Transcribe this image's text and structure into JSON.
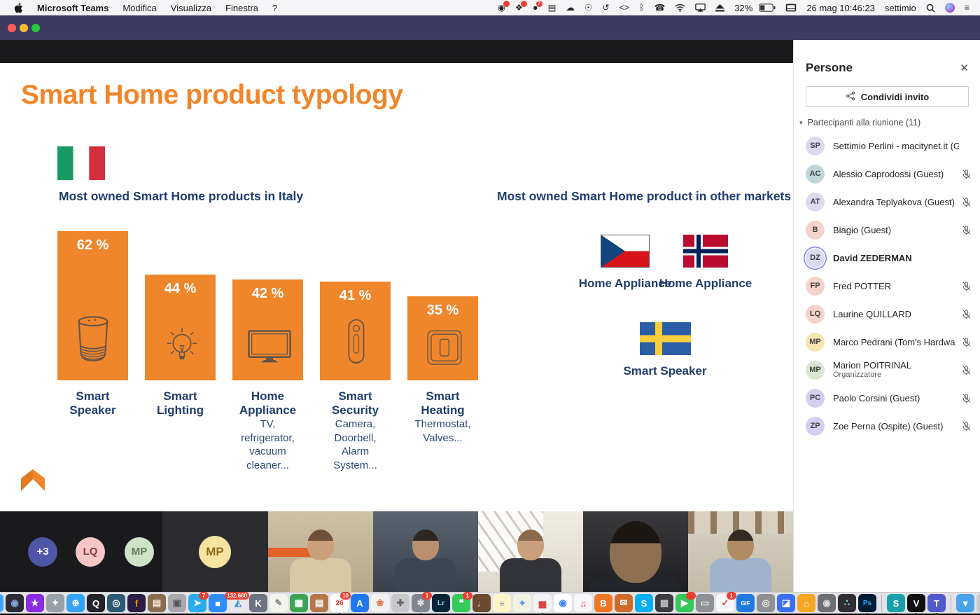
{
  "chart_data": {
    "type": "bar",
    "title": "Smart Home product typology",
    "subtitle": "Most owned Smart Home products in Italy",
    "categories": [
      "Smart Speaker",
      "Smart Lighting",
      "Home Appliance",
      "Smart Security",
      "Smart Heating"
    ],
    "values": [
      62,
      44,
      42,
      41,
      35
    ],
    "value_labels": [
      "62 %",
      "44 %",
      "42 %",
      "41 %",
      "35 %"
    ],
    "bar_color": "#f0862b",
    "annotations": [
      "TV, refrigerator, vacuum cleaner...",
      "Camera, Doorbell, Alarm System...",
      "Thermostat, Valves..."
    ],
    "other_markets": [
      {
        "country": "Czech Republic",
        "top_product": "Home Appliance"
      },
      {
        "country": "Norway",
        "top_product": "Home Appliance"
      },
      {
        "country": "Sweden",
        "top_product": "Smart Speaker"
      }
    ]
  },
  "menubar": {
    "app_name": "Microsoft Teams",
    "menus": [
      "Modifica",
      "Visualizza",
      "Finestra",
      "?"
    ],
    "status": {
      "icons": [
        {
          "name": "screen-recording-icon",
          "badge": "dot"
        },
        {
          "name": "extensions-icon",
          "badge": "dot"
        },
        {
          "name": "updates-icon",
          "badge": "7"
        },
        {
          "name": "bricks-icon"
        },
        {
          "name": "cloud-upload-icon"
        },
        {
          "name": "accessibility-icon"
        },
        {
          "name": "time-machine-icon"
        },
        {
          "name": "developer-icon"
        },
        {
          "name": "bluetooth-icon"
        },
        {
          "name": "phone-icon"
        },
        {
          "name": "wifi-icon"
        },
        {
          "name": "airplay-display-icon"
        },
        {
          "name": "eject-icon"
        }
      ],
      "battery": "32%",
      "input_icon": "keyboard-input-icon",
      "clock": "26 mag 10:46:23",
      "user": "settimio",
      "trailing_icons": [
        {
          "name": "spotlight-search-icon"
        },
        {
          "name": "siri-icon"
        },
        {
          "name": "notification-center-icon"
        }
      ]
    }
  },
  "slide": {
    "title": "Smart Home product typology",
    "italy_heading": "Most owned Smart Home products in Italy",
    "markets_heading": "Most owned Smart Home product in other markets",
    "bars": [
      {
        "pct": "62 %",
        "value": 62,
        "icon": "smart-speaker-icon",
        "label": "Smart Speaker",
        "sub": ""
      },
      {
        "pct": "44 %",
        "value": 44,
        "icon": "light-bulb-icon",
        "label": "Smart Lighting",
        "sub": ""
      },
      {
        "pct": "42 %",
        "value": 42,
        "icon": "tv-icon",
        "label": "Home Appliance",
        "sub": "TV, refrigerator, vacuum cleaner..."
      },
      {
        "pct": "41 %",
        "value": 41,
        "icon": "security-camera-icon",
        "label": "Smart Security",
        "sub": "Camera, Doorbell, Alarm System..."
      },
      {
        "pct": "35 %",
        "value": 35,
        "icon": "thermostat-icon",
        "label": "Smart Heating",
        "sub": "Thermostat, Valves..."
      }
    ],
    "markets": [
      {
        "flag": "czech-flag",
        "label": "Home Appliance"
      },
      {
        "flag": "norway-flag",
        "label": "Home Appliance"
      },
      {
        "flag": "sweden-flag",
        "label": "Smart Speaker"
      }
    ]
  },
  "filmstrip": {
    "overflow_circles": [
      {
        "initials": "+3",
        "bg": "#4f55a7",
        "fg": "#ffffff"
      },
      {
        "initials": "LQ",
        "bg": "#f5c6c6",
        "fg": "#8a3c3c"
      },
      {
        "initials": "MP",
        "bg": "#cfe3c9",
        "fg": "#5b7a55"
      }
    ],
    "spotlight": {
      "initials": "MP",
      "bg": "#f7e3a1",
      "fg": "#8a6d1f"
    },
    "videos": [
      {
        "name": "participant-video-1",
        "variant": "beige-room"
      },
      {
        "name": "participant-video-2",
        "variant": "dark-room"
      },
      {
        "name": "participant-video-3",
        "variant": "keyboard-wall"
      },
      {
        "name": "participant-video-4",
        "variant": "closeup-dark"
      },
      {
        "name": "participant-video-5",
        "variant": "wood-ceiling"
      }
    ]
  },
  "people_panel": {
    "title": "Persone",
    "invite_label": "Condividi invito",
    "section_label": "Partecipanti alla riunione (11)",
    "participants": [
      {
        "initials": "SP",
        "name": "Settimio Perlini - macitynet.it (Guest",
        "sub": "",
        "muted": false,
        "bold": false,
        "speaking": false,
        "avatar": "#ded9f0"
      },
      {
        "initials": "AC",
        "name": "Alessio Caprodossi (Guest)",
        "sub": "",
        "muted": true,
        "bold": false,
        "speaking": false,
        "avatar": "#bfd7da"
      },
      {
        "initials": "AT",
        "name": "Alexandra Teplyakova (Guest)",
        "sub": "",
        "muted": true,
        "bold": false,
        "speaking": false,
        "avatar": "#ded9f0"
      },
      {
        "initials": "B",
        "name": "Biagio (Guest)",
        "sub": "",
        "muted": true,
        "bold": false,
        "speaking": false,
        "avatar": "#f5d3cb"
      },
      {
        "initials": "DZ",
        "name": "David ZEDERMAN",
        "sub": "",
        "muted": false,
        "bold": true,
        "speaking": true,
        "avatar": "#dcd9f2"
      },
      {
        "initials": "FP",
        "name": "Fred POTTER",
        "sub": "",
        "muted": true,
        "bold": false,
        "speaking": false,
        "avatar": "#f5d3cb"
      },
      {
        "initials": "LQ",
        "name": "Laurine QUILLARD",
        "sub": "",
        "muted": true,
        "bold": false,
        "speaking": false,
        "avatar": "#f5d3cb"
      },
      {
        "initials": "MP",
        "name": "Marco Pedrani (Tom's Hardwa",
        "sub": "",
        "muted": true,
        "bold": false,
        "speaking": false,
        "avatar": "#f6e5ae"
      },
      {
        "initials": "MP",
        "name": "Marion POITRINAL",
        "sub": "Organizzatore",
        "muted": true,
        "bold": false,
        "speaking": false,
        "avatar": "#d7e7d0"
      },
      {
        "initials": "PC",
        "name": "Paolo Corsini (Guest)",
        "sub": "",
        "muted": true,
        "bold": false,
        "speaking": false,
        "avatar": "#d6cef0"
      },
      {
        "initials": "ZP",
        "name": "Zoe Perna (Ospite) (Guest)",
        "sub": "",
        "muted": true,
        "bold": false,
        "speaking": false,
        "avatar": "#d6cef0"
      }
    ]
  },
  "dock": {
    "items": [
      {
        "name": "finder",
        "glyph": "☺",
        "bg": "#3fa2f7",
        "fg": "#fff",
        "run": true
      },
      {
        "name": "siri",
        "glyph": "◉",
        "bg": "#2b2b35",
        "fg": "#88aadd"
      },
      {
        "name": "imovie",
        "glyph": "★",
        "bg": "#8a2be2",
        "fg": "#fff"
      },
      {
        "name": "launchpad",
        "glyph": "✦",
        "bg": "#9aa0a8",
        "fg": "#fff"
      },
      {
        "name": "safari",
        "glyph": "⊕",
        "bg": "#35a3f4",
        "fg": "#fff"
      },
      {
        "name": "quicktime",
        "glyph": "Q",
        "bg": "#23232b",
        "fg": "#fff"
      },
      {
        "name": "photo-booth",
        "glyph": "◎",
        "bg": "#2b5a72",
        "fg": "#fff"
      },
      {
        "name": "firefox",
        "glyph": "f",
        "bg": "#2a1e45",
        "fg": "#ff9500",
        "run": true
      },
      {
        "name": "contacts",
        "glyph": "▤",
        "bg": "#8a6c4e",
        "fg": "#f4e8d4"
      },
      {
        "name": "image-capture",
        "glyph": "▣",
        "bg": "#a9a9ad",
        "fg": "#555"
      },
      {
        "name": "telegram",
        "glyph": "➤",
        "bg": "#2aabee",
        "fg": "#fff",
        "badge": "7",
        "run": true
      },
      {
        "name": "zoom",
        "glyph": "■",
        "bg": "#2d8cff",
        "fg": "#fff"
      },
      {
        "name": "photos-library",
        "glyph": "◭",
        "bg": "#e8e8ec",
        "fg": "#4a90d9",
        "badge": "132.660"
      },
      {
        "name": "keynote",
        "glyph": "K",
        "bg": "#6d7380",
        "fg": "#fff"
      },
      {
        "name": "textedit",
        "glyph": "✎",
        "bg": "#f5f5f0",
        "fg": "#888"
      },
      {
        "name": "numbers",
        "glyph": "▦",
        "bg": "#3fa455",
        "fg": "#fff"
      },
      {
        "name": "photo-stack",
        "glyph": "▤",
        "bg": "#b5764a",
        "fg": "#fff"
      },
      {
        "name": "calendar",
        "glyph": "26",
        "bg": "#ffffff",
        "fg": "#e03333",
        "badge": "10",
        "run": true
      },
      {
        "name": "app-store",
        "glyph": "A",
        "bg": "#1f78f0",
        "fg": "#fff"
      },
      {
        "name": "photos",
        "glyph": "❀",
        "bg": "#f2f2f2",
        "fg": "#e6704d"
      },
      {
        "name": "creative-tools",
        "glyph": "✚",
        "bg": "#c6c8cc",
        "fg": "#666"
      },
      {
        "name": "system-preferences",
        "glyph": "✱",
        "bg": "#7f8690",
        "fg": "#ddd",
        "badge": "1",
        "run": true
      },
      {
        "name": "lightroom",
        "glyph": "Lr",
        "bg": "#0a2636",
        "fg": "#9fd0f5"
      },
      {
        "name": "messages",
        "glyph": "❝",
        "bg": "#35cb59",
        "fg": "#fff",
        "badge": "1"
      },
      {
        "name": "garageband",
        "glyph": "♩",
        "bg": "#6b4a2f",
        "fg": "#e8c9a0"
      },
      {
        "name": "notes",
        "glyph": "≡",
        "bg": "#fdf6c8",
        "fg": "#999"
      },
      {
        "name": "maps",
        "glyph": "⌖",
        "bg": "#eef3e2",
        "fg": "#4285f4"
      },
      {
        "name": "stocks",
        "glyph": "▅",
        "bg": "#f4f4f6",
        "fg": "#d44",
        "run": true
      },
      {
        "name": "chrome",
        "glyph": "◉",
        "bg": "#ffffff",
        "fg": "#4285f4"
      },
      {
        "name": "music",
        "glyph": "♫",
        "bg": "#f7f7f9",
        "fg": "#fa3b5c"
      },
      {
        "name": "books",
        "glyph": "B",
        "bg": "#f07722",
        "fg": "#fff"
      },
      {
        "name": "mail-photo",
        "glyph": "✉",
        "bg": "#d06a2c",
        "fg": "#fff"
      },
      {
        "name": "skype",
        "glyph": "S",
        "bg": "#00aff0",
        "fg": "#fff"
      },
      {
        "name": "pro-app",
        "glyph": "▩",
        "bg": "#3c3c40",
        "fg": "#bbb"
      },
      {
        "name": "facetime",
        "glyph": "▶",
        "bg": "#34c759",
        "fg": "#fff",
        "badge": "dot"
      },
      {
        "name": "display-app",
        "glyph": "▭",
        "bg": "#8e9196",
        "fg": "#eee"
      },
      {
        "name": "reminders",
        "glyph": "✓",
        "bg": "#f7f7f7",
        "fg": "#e8443a",
        "badge": "1"
      },
      {
        "name": "gif-brewery",
        "glyph": "GIF",
        "bg": "#1f7ae0",
        "fg": "#fff"
      },
      {
        "name": "screenshot-tool",
        "glyph": "◎",
        "bg": "#8f8f94",
        "fg": "#eee"
      },
      {
        "name": "eraser-app",
        "glyph": "◪",
        "bg": "#3a6df0",
        "fg": "#fff"
      },
      {
        "name": "home-app",
        "glyph": "⌂",
        "bg": "#f5a623",
        "fg": "#fff"
      },
      {
        "name": "dvd-player",
        "glyph": "◉",
        "bg": "#6e6e73",
        "fg": "#ddd"
      },
      {
        "name": "sphere-app",
        "glyph": "∴",
        "bg": "#2e2e33",
        "fg": "#8ff"
      },
      {
        "name": "photoshop",
        "glyph": "Ps",
        "bg": "#001e36",
        "fg": "#31a8ff",
        "run": true
      },
      {
        "name": "separator-1",
        "sep": true
      },
      {
        "name": "surfshark",
        "glyph": "S",
        "bg": "#17a1a9",
        "fg": "#fff",
        "run": true
      },
      {
        "name": "v-app",
        "glyph": "V",
        "bg": "#111111",
        "fg": "#fff",
        "run": true
      },
      {
        "name": "teams",
        "glyph": "T",
        "bg": "#5059c9",
        "fg": "#fff",
        "run": true
      },
      {
        "name": "separator-2",
        "sep": true
      },
      {
        "name": "downloads-folder",
        "glyph": "▼",
        "bg": "#4aa3e8",
        "fg": "#fff"
      },
      {
        "name": "trash",
        "glyph": "▯",
        "bg": "#c7c9cc",
        "fg": "#888"
      }
    ]
  }
}
